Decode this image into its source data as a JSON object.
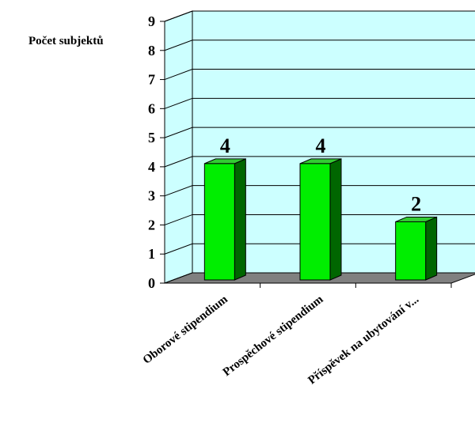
{
  "chart_data": {
    "type": "bar",
    "ylabel": "Počet subjektů",
    "xlabel": "",
    "title": "",
    "categories": [
      "Oborové stipendium",
      "Prospěchové stipendium",
      "Příspěvek na ubytování v..."
    ],
    "values": [
      4,
      4,
      2
    ],
    "data_labels": [
      "4",
      "4",
      "2"
    ],
    "ylim": [
      0,
      9
    ],
    "yticks": [
      "0",
      "1",
      "2",
      "3",
      "4",
      "5",
      "6",
      "7",
      "8",
      "9"
    ],
    "grid": true,
    "legend": "none",
    "colors": {
      "bar_front": "#00ee00",
      "bar_side": "#006600",
      "bar_top": "#33cc33",
      "back_wall": "#ccffff",
      "side_wall": "#ccffff",
      "floor": "#808080",
      "grid": "#000000"
    }
  }
}
